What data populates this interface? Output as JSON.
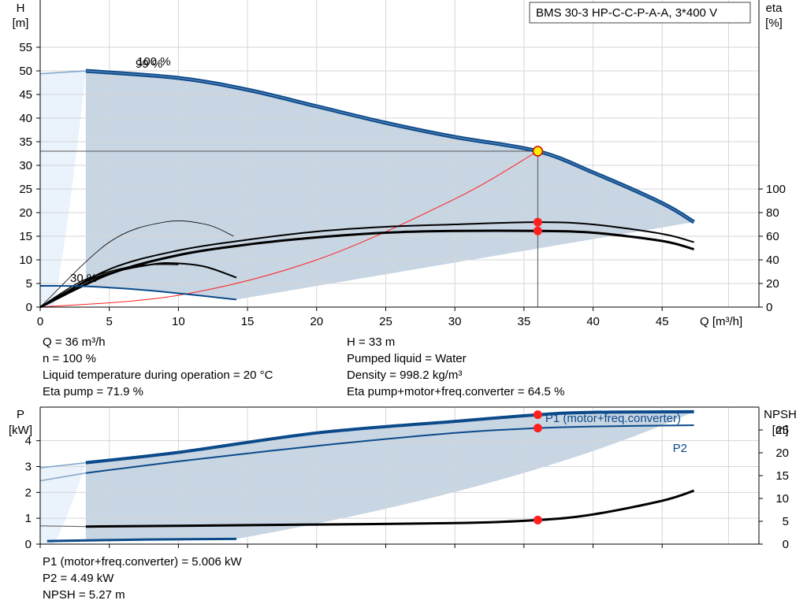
{
  "title_box": "BMS 30-3 HP-C-C-P-A-A, 3*400 V",
  "colors": {
    "curve_blue": "#0b4a8a",
    "region_fill": "#c8d5e3",
    "region_light": "#eaf2fb",
    "grid": "#d6d6d6",
    "duty_marker": "#ff2020",
    "system_curve": "#ff2020",
    "duty_point_fill": "#ffee00"
  },
  "upper_info": {
    "left": [
      "Q = 36 m³/h",
      "n = 100 %",
      "Liquid temperature during operation = 20 °C",
      "Eta pump = 71.9 %"
    ],
    "right": [
      "H = 33 m",
      "Pumped liquid = Water",
      "Density = 998.2 kg/m³",
      "Eta pump+motor+freq.converter = 64.5 %"
    ]
  },
  "lower_info": [
    "P1 (motor+freq.converter) = 5.006 kW",
    "P2 = 4.49 kW",
    "NPSH = 5.27 m"
  ],
  "chart_data": [
    {
      "type": "line",
      "left_axis": {
        "label": "H",
        "unit": "[m]",
        "ticks": [
          0,
          5,
          10,
          15,
          20,
          25,
          30,
          35,
          40,
          45,
          50,
          55
        ],
        "range": [
          0,
          65
        ]
      },
      "right_axis": {
        "label": "eta",
        "unit": "[%]",
        "ticks": [
          0,
          20,
          40,
          60,
          80,
          100
        ],
        "range": [
          0,
          100
        ]
      },
      "x_axis": {
        "label": "Q [m³/h]",
        "ticks": [
          0,
          5,
          10,
          15,
          20,
          25,
          30,
          35,
          40,
          45
        ],
        "range": [
          0,
          52
        ]
      },
      "grid": true,
      "annotations": {
        "speed_100": "100 %",
        "speed_99": "99 %",
        "speed_30": "30 %"
      },
      "duty_point": {
        "q": 36,
        "h": 33,
        "eta_pump": 71.9,
        "eta_total": 64.5
      },
      "series": [
        {
          "id": "head_100",
          "x": [
            3.3,
            10,
            15,
            20,
            25,
            30,
            36,
            40,
            45,
            47.3
          ],
          "y": [
            50,
            48.5,
            46,
            42.5,
            39,
            36,
            33,
            28.5,
            22,
            18
          ]
        },
        {
          "id": "head_30",
          "x": [
            0,
            3.3,
            8,
            14.2
          ],
          "y": [
            4.5,
            4.4,
            3.5,
            1.6
          ]
        },
        {
          "id": "eta_pump_100",
          "x": [
            0,
            5,
            10,
            15,
            20,
            25,
            30,
            36,
            40,
            45,
            47.3
          ],
          "y": [
            0,
            32,
            48,
            57,
            64,
            68,
            70,
            71.9,
            70,
            62,
            55
          ]
        },
        {
          "id": "eta_total_100",
          "x": [
            0,
            5,
            10,
            15,
            20,
            25,
            30,
            36,
            40,
            45,
            47.3
          ],
          "y": [
            0,
            28,
            44,
            53,
            59,
            63,
            64.5,
            64.5,
            63,
            56,
            49
          ]
        },
        {
          "id": "eta_pump_30",
          "x": [
            0,
            4,
            8,
            10,
            12,
            14.2
          ],
          "y": [
            0,
            25,
            36,
            37,
            34,
            25
          ]
        },
        {
          "id": "eta_total_30",
          "x": [
            0,
            3,
            6,
            8,
            10
          ],
          "y": [
            0,
            22,
            33,
            36,
            36
          ]
        },
        {
          "id": "eta_extra_thin",
          "x": [
            0,
            5,
            9,
            12,
            14
          ],
          "y": [
            0,
            55,
            72,
            70,
            60
          ]
        },
        {
          "id": "system_curve",
          "x": [
            0,
            10,
            20,
            30,
            36
          ],
          "y": [
            0,
            2.5,
            10,
            22.9,
            33
          ]
        }
      ]
    },
    {
      "type": "line",
      "left_axis": {
        "label": "P",
        "unit": "[kW]",
        "ticks": [
          0,
          1,
          2,
          3,
          4
        ],
        "range": [
          0,
          5.3
        ]
      },
      "right_axis": {
        "label": "NPSH",
        "unit": "[m]",
        "ticks": [
          0,
          5,
          10,
          15,
          20,
          25
        ],
        "range": [
          0,
          25
        ]
      },
      "x_axis": {
        "ticks": [
          0,
          5,
          10,
          15,
          20,
          25,
          30,
          35,
          40,
          45
        ],
        "range": [
          0,
          52
        ]
      },
      "grid": true,
      "series_labels": {
        "p1": "P1 (motor+freq.converter)",
        "p2": "P2"
      },
      "duty_point": {
        "q": 36,
        "p1": 5.006,
        "p2": 4.49,
        "npsh": 5.27
      },
      "series": [
        {
          "id": "p1",
          "x": [
            0,
            3.3,
            10,
            20,
            30,
            36,
            40,
            47.3
          ],
          "y": [
            2.95,
            3.15,
            3.55,
            4.3,
            4.75,
            5.006,
            5.1,
            5.12
          ]
        },
        {
          "id": "p2",
          "x": [
            0,
            3.3,
            10,
            20,
            30,
            36,
            40,
            47.3
          ],
          "y": [
            2.45,
            2.75,
            3.2,
            3.8,
            4.3,
            4.49,
            4.55,
            4.6
          ]
        },
        {
          "id": "npsh",
          "x": [
            0,
            3.3,
            10,
            20,
            30,
            36,
            40,
            45,
            47.3
          ],
          "y": [
            4,
            3.85,
            4,
            4.3,
            4.6,
            5.27,
            6.5,
            9.5,
            11.7
          ]
        },
        {
          "id": "p_30",
          "x": [
            0.5,
            3,
            8,
            14.2
          ],
          "y": [
            0.12,
            0.14,
            0.18,
            0.2
          ]
        }
      ]
    }
  ]
}
